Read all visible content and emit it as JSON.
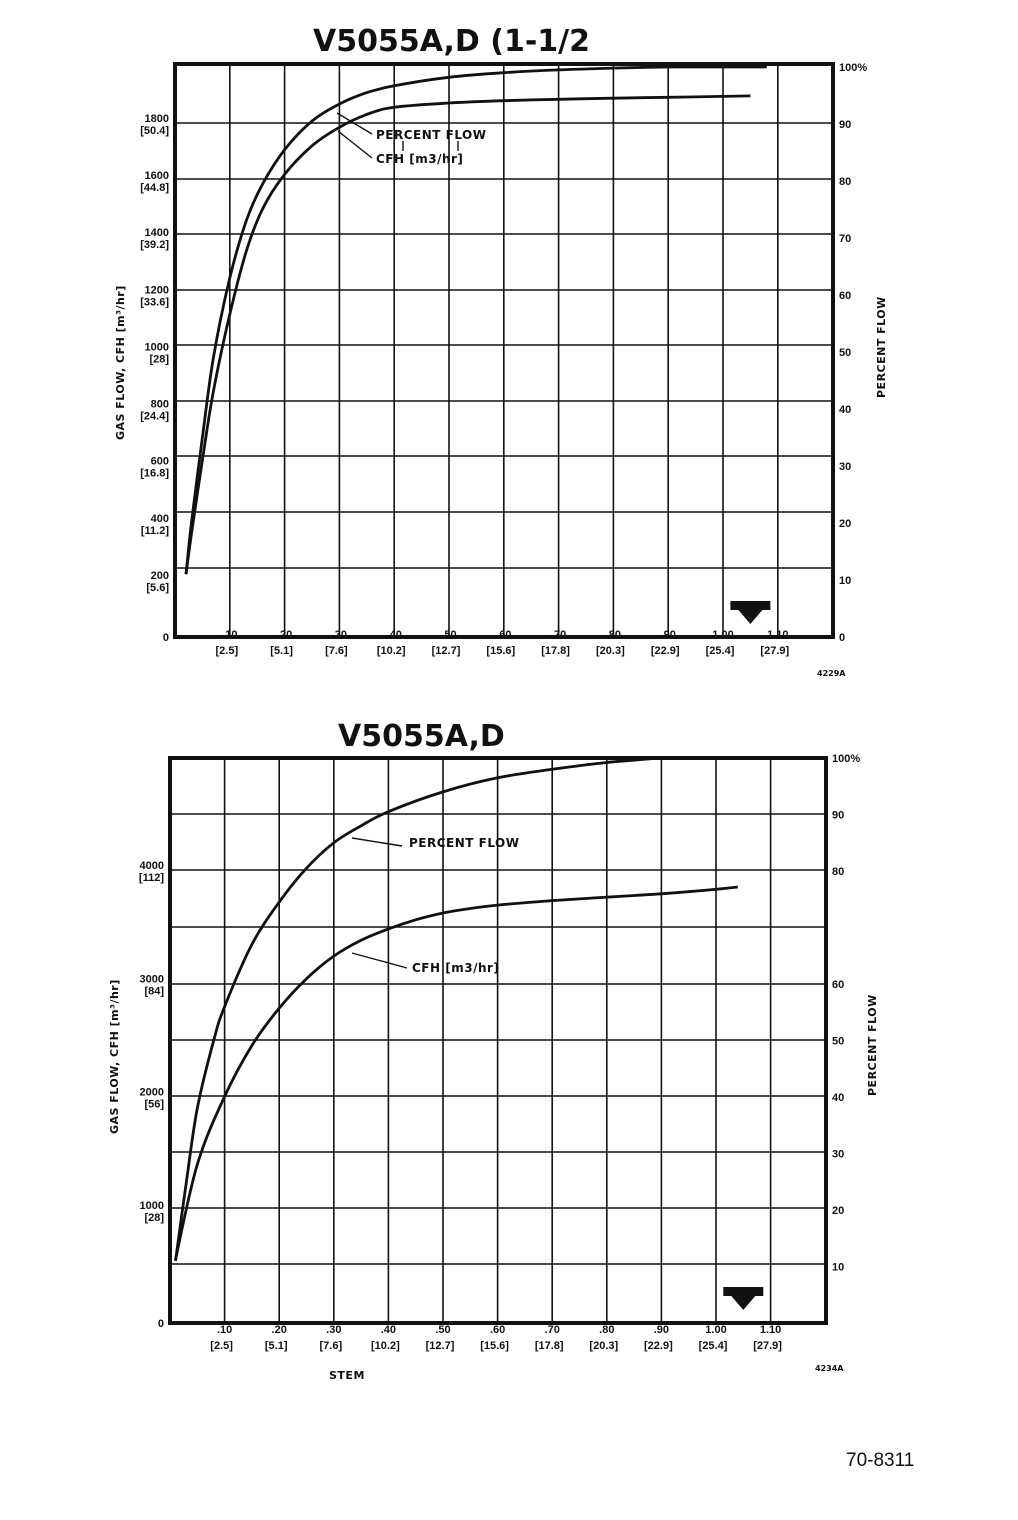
{
  "chart_data": [
    {
      "type": "line",
      "title": "V5055A,D (1-1/2",
      "ylabel": "GAS FLOW, CFH [m³/hr]",
      "y2label": "PERCENT FLOW",
      "xlabel": "",
      "figure_ref": "4229A",
      "ylim": [
        0,
        2000
      ],
      "y2lim": [
        0,
        100
      ],
      "xlim": [
        0,
        1.2
      ],
      "grid": true,
      "x_ticks": [
        {
          "value": 0.1,
          "label": ".10",
          "sub": "[2.5]"
        },
        {
          "value": 0.2,
          "label": ".20",
          "sub": "[5.1]"
        },
        {
          "value": 0.3,
          "label": ".30",
          "sub": "[7.6]"
        },
        {
          "value": 0.4,
          "label": ".40",
          "sub": "[10.2]"
        },
        {
          "value": 0.5,
          "label": ".50",
          "sub": "[12.7]"
        },
        {
          "value": 0.6,
          "label": ".60",
          "sub": "[15.6]"
        },
        {
          "value": 0.7,
          "label": ".70",
          "sub": "[17.8]"
        },
        {
          "value": 0.8,
          "label": ".80",
          "sub": "[20.3]"
        },
        {
          "value": 0.9,
          "label": ".90",
          "sub": "[22.9]"
        },
        {
          "value": 1.0,
          "label": "1.00",
          "sub": "[25.4]"
        },
        {
          "value": 1.1,
          "label": "1.10",
          "sub": "[27.9]"
        }
      ],
      "y_ticks": [
        {
          "value": 0,
          "label": "0",
          "sub": ""
        },
        {
          "value": 200,
          "label": "200",
          "sub": "[5.6]"
        },
        {
          "value": 400,
          "label": "400",
          "sub": "[11.2]"
        },
        {
          "value": 600,
          "label": "600",
          "sub": "[16.8]"
        },
        {
          "value": 800,
          "label": "800",
          "sub": "[24.4]"
        },
        {
          "value": 1000,
          "label": "1000",
          "sub": "[28]"
        },
        {
          "value": 1200,
          "label": "1200",
          "sub": "[33.6]"
        },
        {
          "value": 1400,
          "label": "1400",
          "sub": "[39.2]"
        },
        {
          "value": 1600,
          "label": "1600",
          "sub": "[44.8]"
        },
        {
          "value": 1800,
          "label": "1800",
          "sub": "[50.4]"
        }
      ],
      "y2_ticks": [
        {
          "value": 0,
          "label": "0"
        },
        {
          "value": 10,
          "label": "10"
        },
        {
          "value": 20,
          "label": "20"
        },
        {
          "value": 30,
          "label": "30"
        },
        {
          "value": 40,
          "label": "40"
        },
        {
          "value": 50,
          "label": "50"
        },
        {
          "value": 60,
          "label": "60"
        },
        {
          "value": 70,
          "label": "70"
        },
        {
          "value": 80,
          "label": "80"
        },
        {
          "value": 90,
          "label": "90"
        },
        {
          "value": 100,
          "label": "100%"
        }
      ],
      "marker_x": 1.05,
      "series": [
        {
          "name": "PERCENT FLOW",
          "axis": "y2",
          "x": [
            0.02,
            0.03,
            0.05,
            0.07,
            0.1,
            0.13,
            0.16,
            0.2,
            0.25,
            0.3,
            0.35,
            0.4,
            0.5,
            0.6,
            0.7,
            0.8,
            0.9,
            1.0,
            1.08
          ],
          "y": [
            11,
            20,
            35,
            49,
            63,
            73,
            79.5,
            85.5,
            90.5,
            93.5,
            95.5,
            96.7,
            98.2,
            99,
            99.5,
            99.8,
            100,
            100,
            100
          ]
        },
        {
          "name": "CFH [m3/hr]",
          "axis": "y",
          "x": [
            0.02,
            0.03,
            0.05,
            0.07,
            0.1,
            0.13,
            0.16,
            0.2,
            0.25,
            0.3,
            0.35,
            0.4,
            0.5,
            0.6,
            0.7,
            0.8,
            0.9,
            1.0,
            1.05
          ],
          "y": [
            220,
            360,
            620,
            860,
            1130,
            1350,
            1500,
            1620,
            1720,
            1785,
            1830,
            1855,
            1870,
            1878,
            1883,
            1887,
            1890,
            1893,
            1895
          ]
        }
      ]
    },
    {
      "type": "line",
      "title": "V5055A,D",
      "ylabel": "GAS FLOW, CFH [m³/hr]",
      "y2label": "PERCENT FLOW",
      "xlabel": "STEM",
      "figure_ref": "4234A",
      "ylim": [
        0,
        5000
      ],
      "y2lim": [
        0,
        100
      ],
      "xlim": [
        0,
        1.2
      ],
      "grid": true,
      "x_ticks": [
        {
          "value": 0.1,
          "label": ".10",
          "sub": "[2.5]"
        },
        {
          "value": 0.2,
          "label": ".20",
          "sub": "[5.1]"
        },
        {
          "value": 0.3,
          "label": ".30",
          "sub": "[7.6]"
        },
        {
          "value": 0.4,
          "label": ".40",
          "sub": "[10.2]"
        },
        {
          "value": 0.5,
          "label": ".50",
          "sub": "[12.7]"
        },
        {
          "value": 0.6,
          "label": ".60",
          "sub": "[15.6]"
        },
        {
          "value": 0.7,
          "label": ".70",
          "sub": "[17.8]"
        },
        {
          "value": 0.8,
          "label": ".80",
          "sub": "[20.3]"
        },
        {
          "value": 0.9,
          "label": ".90",
          "sub": "[22.9]"
        },
        {
          "value": 1.0,
          "label": "1.00",
          "sub": "[25.4]"
        },
        {
          "value": 1.1,
          "label": "1.10",
          "sub": "[27.9]"
        }
      ],
      "y_ticks": [
        {
          "value": 0,
          "label": "0",
          "sub": ""
        },
        {
          "value": 1000,
          "label": "1000",
          "sub": "[28]"
        },
        {
          "value": 2000,
          "label": "2000",
          "sub": "[56]"
        },
        {
          "value": 3000,
          "label": "3000",
          "sub": "[84]"
        },
        {
          "value": 4000,
          "label": "4000",
          "sub": "[112]"
        }
      ],
      "y2_ticks": [
        {
          "value": 10,
          "label": "10"
        },
        {
          "value": 20,
          "label": "20"
        },
        {
          "value": 30,
          "label": "30"
        },
        {
          "value": 40,
          "label": "40"
        },
        {
          "value": 50,
          "label": "50"
        },
        {
          "value": 60,
          "label": "60"
        },
        {
          "value": 80,
          "label": "80"
        },
        {
          "value": 90,
          "label": "90"
        },
        {
          "value": 100,
          "label": "100%"
        }
      ],
      "marker_x": 1.05,
      "series": [
        {
          "name": "PERCENT FLOW",
          "axis": "y2",
          "x": [
            0.01,
            0.03,
            0.05,
            0.08,
            0.1,
            0.15,
            0.2,
            0.25,
            0.3,
            0.35,
            0.4,
            0.5,
            0.6,
            0.7,
            0.8,
            0.9
          ],
          "y": [
            11,
            25,
            38,
            50,
            56,
            67,
            74.5,
            80.5,
            85,
            88,
            90.5,
            94,
            96.5,
            98,
            99.2,
            100
          ]
        },
        {
          "name": "CFH [m3/hr]",
          "axis": "y",
          "x": [
            0.01,
            0.05,
            0.1,
            0.15,
            0.2,
            0.25,
            0.3,
            0.35,
            0.4,
            0.45,
            0.5,
            0.55,
            0.6,
            0.7,
            0.8,
            0.9,
            1.0,
            1.04
          ],
          "y": [
            560,
            1400,
            2000,
            2450,
            2780,
            3040,
            3240,
            3380,
            3480,
            3560,
            3620,
            3660,
            3690,
            3730,
            3760,
            3790,
            3830,
            3850
          ]
        }
      ]
    }
  ],
  "annotations": {
    "chart1_percent_flow": "PERCENT FLOW",
    "chart1_cfh": "CFH [m3/hr]",
    "chart2_percent_flow": "PERCENT FLOW",
    "chart2_cfh": "CFH [m3/hr]"
  },
  "footer": {
    "doc_number": "70-8311"
  }
}
